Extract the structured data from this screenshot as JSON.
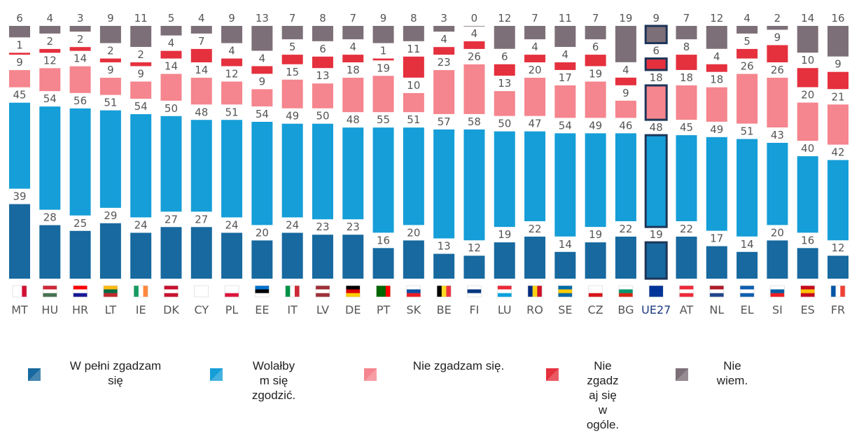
{
  "chart_data": {
    "type": "stacked-bar",
    "categories": [
      "MT",
      "HU",
      "HR",
      "LT",
      "IE",
      "DK",
      "CY",
      "PL",
      "EE",
      "IT",
      "LV",
      "DE",
      "PT",
      "SK",
      "BE",
      "FI",
      "LU",
      "RO",
      "SE",
      "CZ",
      "BG",
      "UE27",
      "AT",
      "NL",
      "EL",
      "SI",
      "ES",
      "FR"
    ],
    "highlight_category": "UE27",
    "series": [
      {
        "name": "W pełni zgadzam się",
        "color": "#17699f",
        "values": [
          39,
          28,
          25,
          29,
          24,
          27,
          27,
          24,
          20,
          24,
          23,
          23,
          16,
          20,
          13,
          12,
          19,
          22,
          14,
          19,
          22,
          19,
          22,
          17,
          14,
          20,
          16,
          12
        ]
      },
      {
        "name": "Wolałbym się zgodzić.",
        "color": "#159ed8",
        "values": [
          45,
          54,
          56,
          51,
          54,
          50,
          48,
          51,
          54,
          49,
          50,
          48,
          55,
          51,
          57,
          58,
          50,
          47,
          54,
          49,
          46,
          48,
          45,
          49,
          51,
          43,
          40,
          42
        ]
      },
      {
        "name": "Nie zgadzam się.",
        "color": "#f5858e",
        "values": [
          9,
          12,
          14,
          9,
          9,
          14,
          14,
          12,
          9,
          15,
          13,
          18,
          19,
          10,
          23,
          26,
          13,
          20,
          17,
          19,
          9,
          18,
          18,
          18,
          26,
          26,
          20,
          21
        ]
      },
      {
        "name": "Nie zgadzaj się w ogóle.",
        "color": "#e5303e",
        "values": [
          1,
          2,
          2,
          2,
          2,
          4,
          7,
          4,
          4,
          5,
          6,
          4,
          1,
          11,
          4,
          4,
          6,
          4,
          4,
          6,
          4,
          6,
          8,
          4,
          5,
          9,
          10,
          9
        ]
      },
      {
        "name": "Nie wiem.",
        "color": "#7d6f77",
        "values": [
          6,
          4,
          3,
          9,
          11,
          5,
          4,
          9,
          13,
          7,
          8,
          7,
          9,
          8,
          3,
          0,
          12,
          7,
          11,
          7,
          19,
          9,
          7,
          12,
          4,
          2,
          14,
          16
        ]
      }
    ]
  }
}
